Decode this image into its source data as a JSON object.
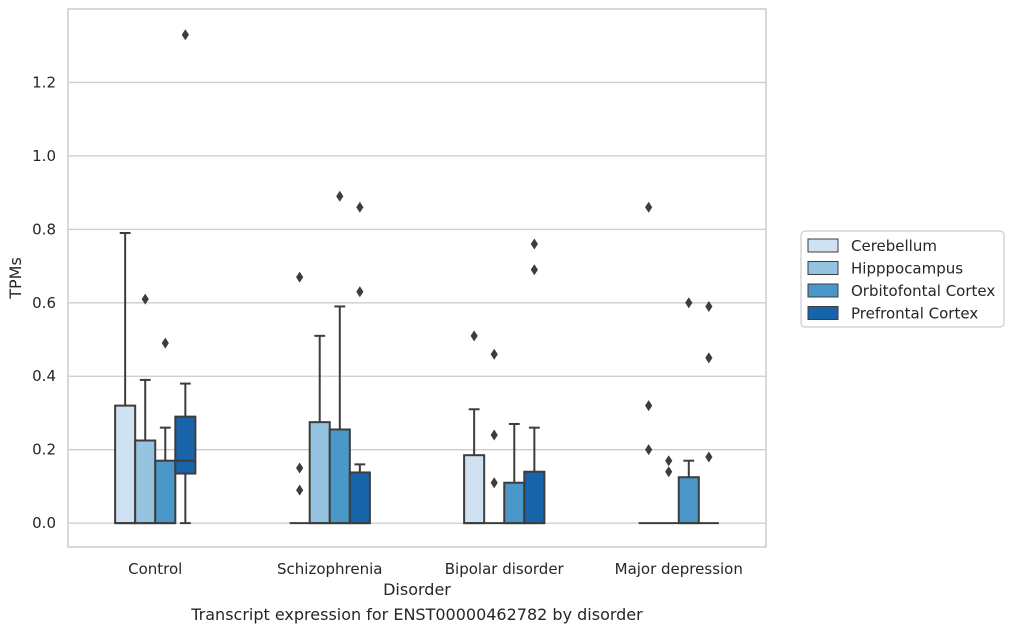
{
  "chart_data": {
    "type": "boxplot",
    "title": "",
    "caption": "Transcript expression for ENST00000462782 by disorder",
    "xlabel": "Disorder",
    "ylabel": "TPMs",
    "ylim": [
      -0.065,
      1.4
    ],
    "yticks": [
      0.0,
      0.2,
      0.4,
      0.6,
      0.8,
      1.0,
      1.2
    ],
    "ytick_labels": [
      "0.0",
      "0.2",
      "0.4",
      "0.6",
      "0.8",
      "1.0",
      "1.2"
    ],
    "categories": [
      "Control",
      "Schizophrenia",
      "Bipolar disorder",
      "Major depression"
    ],
    "grid": "horizontal",
    "legend_position": "right",
    "series": [
      {
        "name": "Cerebellum",
        "color": "#d0e1f2",
        "boxes": [
          {
            "q1": 0.0,
            "median": 0.0,
            "q3": 0.32,
            "whisker_low": 0.0,
            "whisker_high": 0.79,
            "outliers": []
          },
          {
            "q1": 0.0,
            "median": 0.0,
            "q3": 0.0,
            "whisker_low": 0.0,
            "whisker_high": 0.0,
            "outliers": [
              0.67,
              0.15,
              0.09
            ]
          },
          {
            "q1": 0.0,
            "median": 0.0,
            "q3": 0.185,
            "whisker_low": 0.0,
            "whisker_high": 0.31,
            "outliers": [
              0.51
            ]
          },
          {
            "q1": 0.0,
            "median": 0.0,
            "q3": 0.0,
            "whisker_low": 0.0,
            "whisker_high": 0.0,
            "outliers": [
              0.86,
              0.32,
              0.2
            ]
          }
        ]
      },
      {
        "name": "Hipppocampus",
        "color": "#94c4df",
        "boxes": [
          {
            "q1": 0.0,
            "median": 0.0,
            "q3": 0.225,
            "whisker_low": 0.0,
            "whisker_high": 0.39,
            "outliers": [
              0.61
            ]
          },
          {
            "q1": 0.0,
            "median": 0.0,
            "q3": 0.275,
            "whisker_low": 0.0,
            "whisker_high": 0.51,
            "outliers": []
          },
          {
            "q1": 0.0,
            "median": 0.0,
            "q3": 0.0,
            "whisker_low": 0.0,
            "whisker_high": 0.0,
            "outliers": [
              0.46,
              0.24,
              0.11
            ]
          },
          {
            "q1": 0.0,
            "median": 0.0,
            "q3": 0.0,
            "whisker_low": 0.0,
            "whisker_high": 0.0,
            "outliers": [
              0.17,
              0.14
            ]
          }
        ]
      },
      {
        "name": "Orbitofontal Cortex",
        "color": "#4a98c9",
        "boxes": [
          {
            "q1": 0.0,
            "median": 0.0,
            "q3": 0.17,
            "whisker_low": 0.0,
            "whisker_high": 0.26,
            "outliers": [
              0.49
            ]
          },
          {
            "q1": 0.0,
            "median": 0.0,
            "q3": 0.255,
            "whisker_low": 0.0,
            "whisker_high": 0.59,
            "outliers": [
              0.89
            ]
          },
          {
            "q1": 0.0,
            "median": 0.0,
            "q3": 0.11,
            "whisker_low": 0.0,
            "whisker_high": 0.27,
            "outliers": []
          },
          {
            "q1": 0.0,
            "median": 0.0,
            "q3": 0.125,
            "whisker_low": 0.0,
            "whisker_high": 0.17,
            "outliers": [
              0.6
            ]
          }
        ]
      },
      {
        "name": "Prefrontal Cortex",
        "color": "#1764ab",
        "boxes": [
          {
            "q1": 0.135,
            "median": 0.17,
            "q3": 0.29,
            "whisker_low": 0.0,
            "whisker_high": 0.38,
            "outliers": [
              1.33
            ]
          },
          {
            "q1": 0.0,
            "median": 0.0,
            "q3": 0.138,
            "whisker_low": 0.0,
            "whisker_high": 0.16,
            "outliers": [
              0.86,
              0.63
            ]
          },
          {
            "q1": 0.0,
            "median": 0.0,
            "q3": 0.14,
            "whisker_low": 0.0,
            "whisker_high": 0.26,
            "outliers": [
              0.76,
              0.69
            ]
          },
          {
            "q1": 0.0,
            "median": 0.0,
            "q3": 0.0,
            "whisker_low": 0.0,
            "whisker_high": 0.0,
            "outliers": [
              0.59,
              0.45,
              0.18
            ]
          }
        ]
      }
    ]
  }
}
